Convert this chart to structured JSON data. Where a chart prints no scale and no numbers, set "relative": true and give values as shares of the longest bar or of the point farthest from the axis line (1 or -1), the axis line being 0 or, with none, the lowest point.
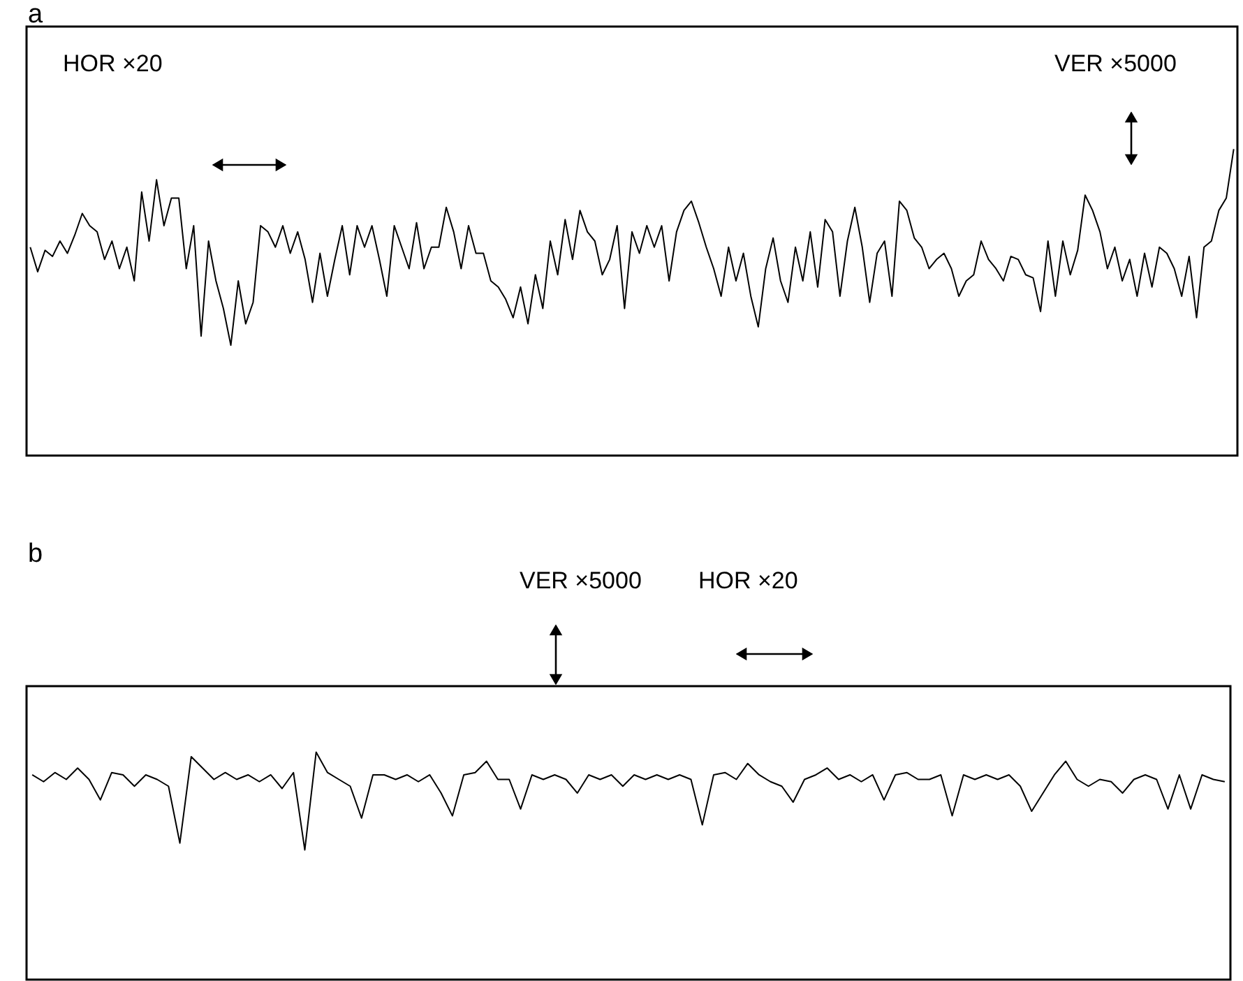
{
  "chart_data": [
    {
      "type": "line",
      "title": "a",
      "relative": true,
      "annotations": [
        "HOR ×20",
        "VER ×5000"
      ],
      "categories": [
        null,
        null,
        null,
        null,
        null,
        null,
        null,
        null,
        null,
        null,
        null,
        null,
        null,
        null,
        null,
        null,
        null,
        null,
        null,
        null,
        null,
        null,
        null,
        null,
        null,
        null,
        null,
        null,
        null,
        null,
        null,
        null,
        null,
        null,
        null,
        null,
        null,
        null,
        null,
        null,
        null,
        null,
        null,
        null,
        null,
        null,
        null,
        null,
        null,
        null,
        null,
        null,
        null,
        null,
        null,
        null,
        null,
        null,
        null,
        null,
        null,
        null,
        null,
        null,
        null,
        null,
        null,
        null,
        null,
        null,
        null,
        null,
        null,
        null,
        null,
        null,
        null,
        null,
        null,
        null,
        null,
        null,
        null,
        null,
        null,
        null,
        null,
        null,
        null,
        null,
        null,
        null,
        null,
        null,
        null,
        null,
        null,
        null,
        null,
        null,
        null,
        null,
        null,
        null,
        null,
        null,
        null,
        null,
        null,
        null,
        null,
        null,
        null,
        null,
        null,
        null,
        null,
        null,
        null,
        null,
        null,
        null,
        null,
        null,
        null,
        null,
        null,
        null,
        null,
        null,
        null,
        null,
        null,
        null,
        null,
        null,
        null,
        null,
        null,
        null,
        null,
        null,
        null,
        null,
        null,
        null,
        null,
        null,
        null,
        null,
        null,
        null,
        null,
        null,
        null,
        null,
        null,
        null,
        null,
        null,
        null,
        null,
        null
      ],
      "series": [
        {
          "color": "#000000",
          "values": [
            0.68,
            0.6,
            0.67,
            0.65,
            0.7,
            0.66,
            0.72,
            0.79,
            0.75,
            0.73,
            0.64,
            0.7,
            0.61,
            0.68,
            0.57,
            0.86,
            0.7,
            0.9,
            0.75,
            0.84,
            0.84,
            0.61,
            0.75,
            0.39,
            0.7,
            0.57,
            0.48,
            0.36,
            0.57,
            0.43,
            0.5,
            0.75,
            0.73,
            0.68,
            0.75,
            0.66,
            0.73,
            0.64,
            0.5,
            0.66,
            0.52,
            0.64,
            0.75,
            0.59,
            0.75,
            0.68,
            0.75,
            0.64,
            0.52,
            0.75,
            0.68,
            0.61,
            0.76,
            0.61,
            0.68,
            0.68,
            0.81,
            0.73,
            0.61,
            0.75,
            0.66,
            0.66,
            0.57,
            0.55,
            0.51,
            0.45,
            0.55,
            0.43,
            0.59,
            0.48,
            0.7,
            0.59,
            0.77,
            0.64,
            0.8,
            0.73,
            0.7,
            0.59,
            0.64,
            0.75,
            0.48,
            0.73,
            0.66,
            0.75,
            0.68,
            0.75,
            0.57,
            0.73,
            0.8,
            0.83,
            0.76,
            0.68,
            0.61,
            0.52,
            0.68,
            0.57,
            0.66,
            0.52,
            0.42,
            0.61,
            0.71,
            0.57,
            0.5,
            0.68,
            0.57,
            0.73,
            0.55,
            0.77,
            0.73,
            0.52,
            0.7,
            0.81,
            0.68,
            0.5,
            0.66,
            0.7,
            0.52,
            0.83,
            0.8,
            0.71,
            0.68,
            0.61,
            0.64,
            0.66,
            0.61,
            0.52,
            0.57,
            0.59,
            0.7,
            0.64,
            0.61,
            0.57,
            0.65,
            0.64,
            0.59,
            0.58,
            0.47,
            0.7,
            0.52,
            0.7,
            0.59,
            0.67,
            0.85,
            0.8,
            0.73,
            0.61,
            0.68,
            0.57,
            0.64,
            0.52,
            0.66,
            0.55,
            0.68,
            0.66,
            0.61,
            0.52,
            0.65,
            0.45,
            0.68,
            0.7,
            0.8,
            0.84,
            1.0
          ]
        }
      ]
    },
    {
      "type": "line",
      "title": "b",
      "relative": true,
      "annotations": [
        "VER ×5000",
        "HOR ×20"
      ],
      "categories": [
        null,
        null,
        null,
        null,
        null,
        null,
        null,
        null,
        null,
        null,
        null,
        null,
        null,
        null,
        null,
        null,
        null,
        null,
        null,
        null,
        null,
        null,
        null,
        null,
        null,
        null,
        null,
        null,
        null,
        null,
        null,
        null,
        null,
        null,
        null,
        null,
        null,
        null,
        null,
        null,
        null,
        null,
        null,
        null,
        null,
        null,
        null,
        null,
        null,
        null,
        null,
        null,
        null,
        null,
        null,
        null,
        null,
        null,
        null,
        null,
        null,
        null,
        null,
        null,
        null,
        null,
        null,
        null,
        null,
        null,
        null,
        null,
        null,
        null,
        null,
        null,
        null,
        null,
        null,
        null,
        null,
        null,
        null,
        null,
        null,
        null,
        null,
        null,
        null,
        null,
        null,
        null,
        null,
        null,
        null,
        null,
        null,
        null,
        null,
        null,
        null,
        null,
        null,
        null,
        null,
        null
      ],
      "series": [
        {
          "color": "#000000",
          "values": [
            0.9,
            0.87,
            0.91,
            0.88,
            0.93,
            0.88,
            0.79,
            0.91,
            0.9,
            0.85,
            0.9,
            0.88,
            0.85,
            0.6,
            0.98,
            0.93,
            0.88,
            0.91,
            0.88,
            0.9,
            0.87,
            0.9,
            0.84,
            0.91,
            0.57,
            1.0,
            0.91,
            0.88,
            0.85,
            0.71,
            0.9,
            0.9,
            0.88,
            0.9,
            0.87,
            0.9,
            0.82,
            0.72,
            0.9,
            0.91,
            0.96,
            0.88,
            0.88,
            0.75,
            0.9,
            0.88,
            0.9,
            0.88,
            0.82,
            0.9,
            0.88,
            0.9,
            0.85,
            0.9,
            0.88,
            0.9,
            0.88,
            0.9,
            0.88,
            0.68,
            0.9,
            0.91,
            0.88,
            0.95,
            0.9,
            0.87,
            0.85,
            0.78,
            0.88,
            0.9,
            0.93,
            0.88,
            0.9,
            0.87,
            0.9,
            0.79,
            0.9,
            0.91,
            0.88,
            0.88,
            0.9,
            0.72,
            0.9,
            0.88,
            0.9,
            0.88,
            0.9,
            0.85,
            0.74,
            0.82,
            0.9,
            0.96,
            0.88,
            0.85,
            0.88,
            0.87,
            0.82,
            0.88,
            0.9,
            0.88,
            0.75,
            0.9,
            0.75,
            0.9,
            0.88,
            0.87
          ]
        }
      ]
    }
  ]
}
